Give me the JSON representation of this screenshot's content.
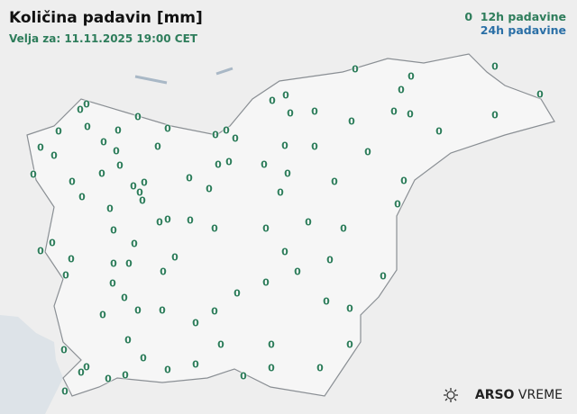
{
  "title": "Količina padavin [mm]",
  "valid_for": "Velja za: 11.11.2025 19:00 CET",
  "legend": {
    "sample_value": "0",
    "item_12h": "12h padavine",
    "item_24h": "24h padavine",
    "color_12h": "#2e7d5b",
    "color_24h": "#2a6fa6"
  },
  "logo": {
    "brand": "ARSO",
    "product": "VREME",
    "icon": "sun-icon"
  },
  "stations_12h": [
    "0",
    "0",
    "0",
    "0",
    "0",
    "0",
    "0",
    "0",
    "0",
    "0",
    "0",
    "0",
    "0",
    "0",
    "0",
    "0",
    "0",
    "0",
    "0",
    "0",
    "0",
    "0",
    "0",
    "0",
    "0",
    "0",
    "0",
    "0",
    "0",
    "0",
    "0",
    "0",
    "0",
    "0",
    "0",
    "0",
    "0",
    "0",
    "0",
    "0",
    "0",
    "0",
    "0",
    "0",
    "0",
    "0",
    "0",
    "0",
    "0",
    "0",
    "0",
    "0",
    "0",
    "0",
    "0",
    "0",
    "0",
    "0",
    "0",
    "0",
    "0",
    "0",
    "0",
    "0",
    "0",
    "0",
    "0",
    "0",
    "0",
    "0",
    "0",
    "0",
    "0",
    "0",
    "0",
    "0",
    "0",
    "0",
    "0",
    "0",
    "0",
    "0",
    "0",
    "0",
    "0",
    "0",
    "0",
    "0",
    "0",
    "0",
    "0",
    "0",
    "0",
    "0",
    "0",
    "0",
    "0",
    "0",
    "0",
    "0"
  ]
}
